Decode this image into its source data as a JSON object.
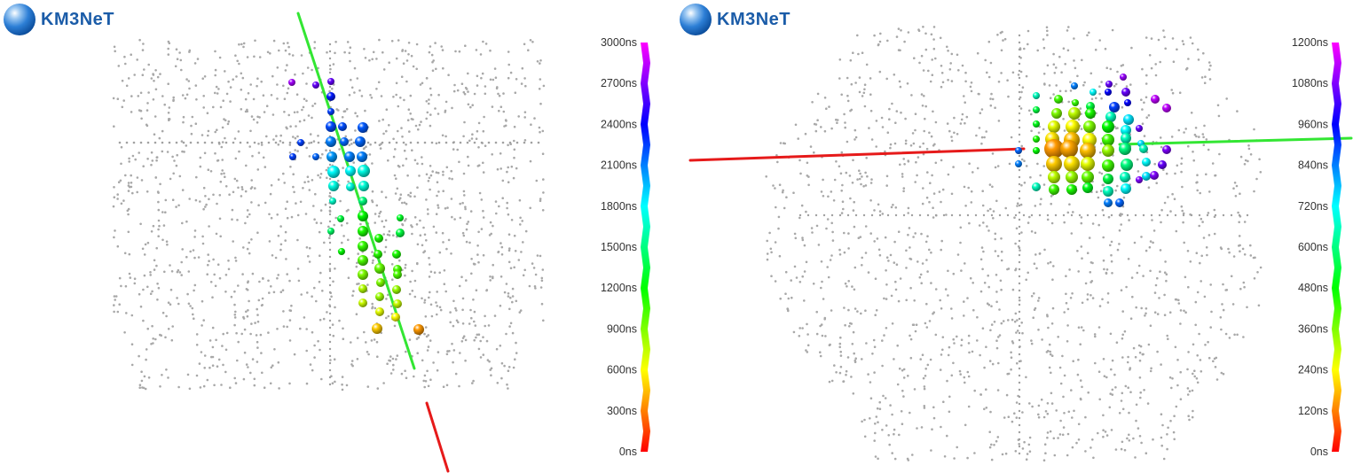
{
  "panels": [
    {
      "id": "left",
      "logo_text": "KM3NeT",
      "scale_labels": [
        "3000ns",
        "2700ns",
        "2400ns",
        "2100ns",
        "1800ns",
        "1500ns",
        "1200ns",
        "900ns",
        "600ns",
        "300ns",
        "0ns"
      ],
      "hits": [
        [
          329,
          93,
          4,
          0.93
        ],
        [
          356,
          96,
          4,
          0.88
        ],
        [
          373,
          92,
          4,
          0.88
        ],
        [
          373,
          109,
          5,
          0.78
        ],
        [
          373,
          126,
          4,
          0.75
        ],
        [
          373,
          143,
          6,
          0.74
        ],
        [
          386,
          143,
          5,
          0.74
        ],
        [
          409,
          144,
          6,
          0.73
        ],
        [
          339,
          161,
          4,
          0.75
        ],
        [
          373,
          160,
          6,
          0.7
        ],
        [
          388,
          160,
          5,
          0.72
        ],
        [
          406,
          160,
          6,
          0.72
        ],
        [
          330,
          177,
          4,
          0.75
        ],
        [
          356,
          177,
          4,
          0.72
        ],
        [
          374,
          177,
          6,
          0.68
        ],
        [
          394,
          177,
          6,
          0.7
        ],
        [
          408,
          177,
          6,
          0.7
        ],
        [
          376,
          194,
          7,
          0.6
        ],
        [
          395,
          193,
          6,
          0.6
        ],
        [
          410,
          193,
          7,
          0.58
        ],
        [
          376,
          210,
          6,
          0.58
        ],
        [
          395,
          211,
          5,
          0.58
        ],
        [
          410,
          210,
          6,
          0.57
        ],
        [
          375,
          227,
          4,
          0.56
        ],
        [
          409,
          227,
          5,
          0.5
        ],
        [
          409,
          244,
          6,
          0.4
        ],
        [
          384,
          247,
          4,
          0.45
        ],
        [
          373,
          261,
          4,
          0.48
        ],
        [
          409,
          261,
          6,
          0.38
        ],
        [
          451,
          246,
          4,
          0.43
        ],
        [
          451,
          263,
          5,
          0.45
        ],
        [
          409,
          278,
          6,
          0.36
        ],
        [
          427,
          269,
          5,
          0.38
        ],
        [
          385,
          284,
          4,
          0.4
        ],
        [
          409,
          294,
          6,
          0.34
        ],
        [
          426,
          287,
          5,
          0.37
        ],
        [
          447,
          287,
          5,
          0.38
        ],
        [
          428,
          303,
          6,
          0.32
        ],
        [
          448,
          304,
          5,
          0.34
        ],
        [
          409,
          310,
          6,
          0.3
        ],
        [
          429,
          319,
          5,
          0.3
        ],
        [
          448,
          310,
          5,
          0.34
        ],
        [
          409,
          326,
          5,
          0.26
        ],
        [
          428,
          335,
          5,
          0.28
        ],
        [
          447,
          327,
          5,
          0.28
        ],
        [
          409,
          342,
          5,
          0.24
        ],
        [
          428,
          352,
          5,
          0.22
        ],
        [
          448,
          343,
          5,
          0.24
        ],
        [
          425,
          371,
          6,
          0.16
        ],
        [
          446,
          358,
          5,
          0.2
        ],
        [
          472,
          372,
          6,
          0.12
        ]
      ]
    },
    {
      "id": "right",
      "logo_text": "KM3NeT",
      "scale_labels": [
        "1200ns",
        "1080ns",
        "960ns",
        "840ns",
        "720ns",
        "600ns",
        "480ns",
        "360ns",
        "240ns",
        "120ns",
        "0ns"
      ],
      "hits": [
        [
          504,
          87,
          4,
          0.92
        ],
        [
          488,
          95,
          4,
          0.88
        ],
        [
          507,
          104,
          5,
          0.88
        ],
        [
          487,
          104,
          4,
          0.8
        ],
        [
          449,
          97,
          4,
          0.7
        ],
        [
          470,
          104,
          4,
          0.6
        ],
        [
          406,
          108,
          4,
          0.55
        ],
        [
          431,
          112,
          5,
          0.35
        ],
        [
          450,
          116,
          4,
          0.36
        ],
        [
          467,
          120,
          5,
          0.45
        ],
        [
          494,
          121,
          6,
          0.75
        ],
        [
          509,
          116,
          4,
          0.8
        ],
        [
          540,
          112,
          5,
          0.95
        ],
        [
          553,
          122,
          5,
          0.95
        ],
        [
          406,
          124,
          4,
          0.45
        ],
        [
          429,
          128,
          6,
          0.3
        ],
        [
          449,
          128,
          7,
          0.25
        ],
        [
          467,
          128,
          6,
          0.38
        ],
        [
          490,
          132,
          6,
          0.55
        ],
        [
          510,
          135,
          6,
          0.62
        ],
        [
          406,
          140,
          4,
          0.42
        ],
        [
          426,
          143,
          7,
          0.22
        ],
        [
          447,
          143,
          8,
          0.2
        ],
        [
          466,
          143,
          7,
          0.3
        ],
        [
          487,
          143,
          7,
          0.4
        ],
        [
          507,
          147,
          6,
          0.6
        ],
        [
          522,
          145,
          4,
          0.88
        ],
        [
          406,
          157,
          4,
          0.38
        ],
        [
          424,
          157,
          8,
          0.18
        ],
        [
          446,
          158,
          9,
          0.15
        ],
        [
          466,
          158,
          8,
          0.2
        ],
        [
          487,
          158,
          7,
          0.35
        ],
        [
          507,
          156,
          6,
          0.55
        ],
        [
          524,
          162,
          4,
          0.62
        ],
        [
          386,
          170,
          4,
          0.72
        ],
        [
          406,
          170,
          4,
          0.4
        ],
        [
          426,
          168,
          11,
          0.12
        ],
        [
          443,
          168,
          10,
          0.13
        ],
        [
          464,
          170,
          9,
          0.15
        ],
        [
          487,
          170,
          7,
          0.28
        ],
        [
          506,
          168,
          7,
          0.5
        ],
        [
          527,
          168,
          5,
          0.55
        ],
        [
          553,
          169,
          5,
          0.9
        ],
        [
          386,
          185,
          4,
          0.7
        ],
        [
          426,
          185,
          9,
          0.16
        ],
        [
          446,
          185,
          9,
          0.18
        ],
        [
          464,
          185,
          8,
          0.22
        ],
        [
          487,
          187,
          7,
          0.35
        ],
        [
          508,
          186,
          7,
          0.5
        ],
        [
          530,
          183,
          5,
          0.6
        ],
        [
          548,
          186,
          5,
          0.88
        ],
        [
          426,
          200,
          7,
          0.25
        ],
        [
          446,
          200,
          7,
          0.28
        ],
        [
          464,
          200,
          7,
          0.32
        ],
        [
          487,
          202,
          6,
          0.45
        ],
        [
          506,
          200,
          6,
          0.55
        ],
        [
          530,
          199,
          5,
          0.62
        ],
        [
          539,
          198,
          5,
          0.9
        ],
        [
          406,
          211,
          5,
          0.55
        ],
        [
          426,
          214,
          6,
          0.35
        ],
        [
          446,
          214,
          6,
          0.38
        ],
        [
          464,
          212,
          6,
          0.42
        ],
        [
          487,
          216,
          6,
          0.55
        ],
        [
          507,
          213,
          6,
          0.6
        ],
        [
          522,
          203,
          4,
          0.9
        ],
        [
          487,
          229,
          5,
          0.7
        ],
        [
          500,
          229,
          5,
          0.72
        ]
      ]
    }
  ]
}
